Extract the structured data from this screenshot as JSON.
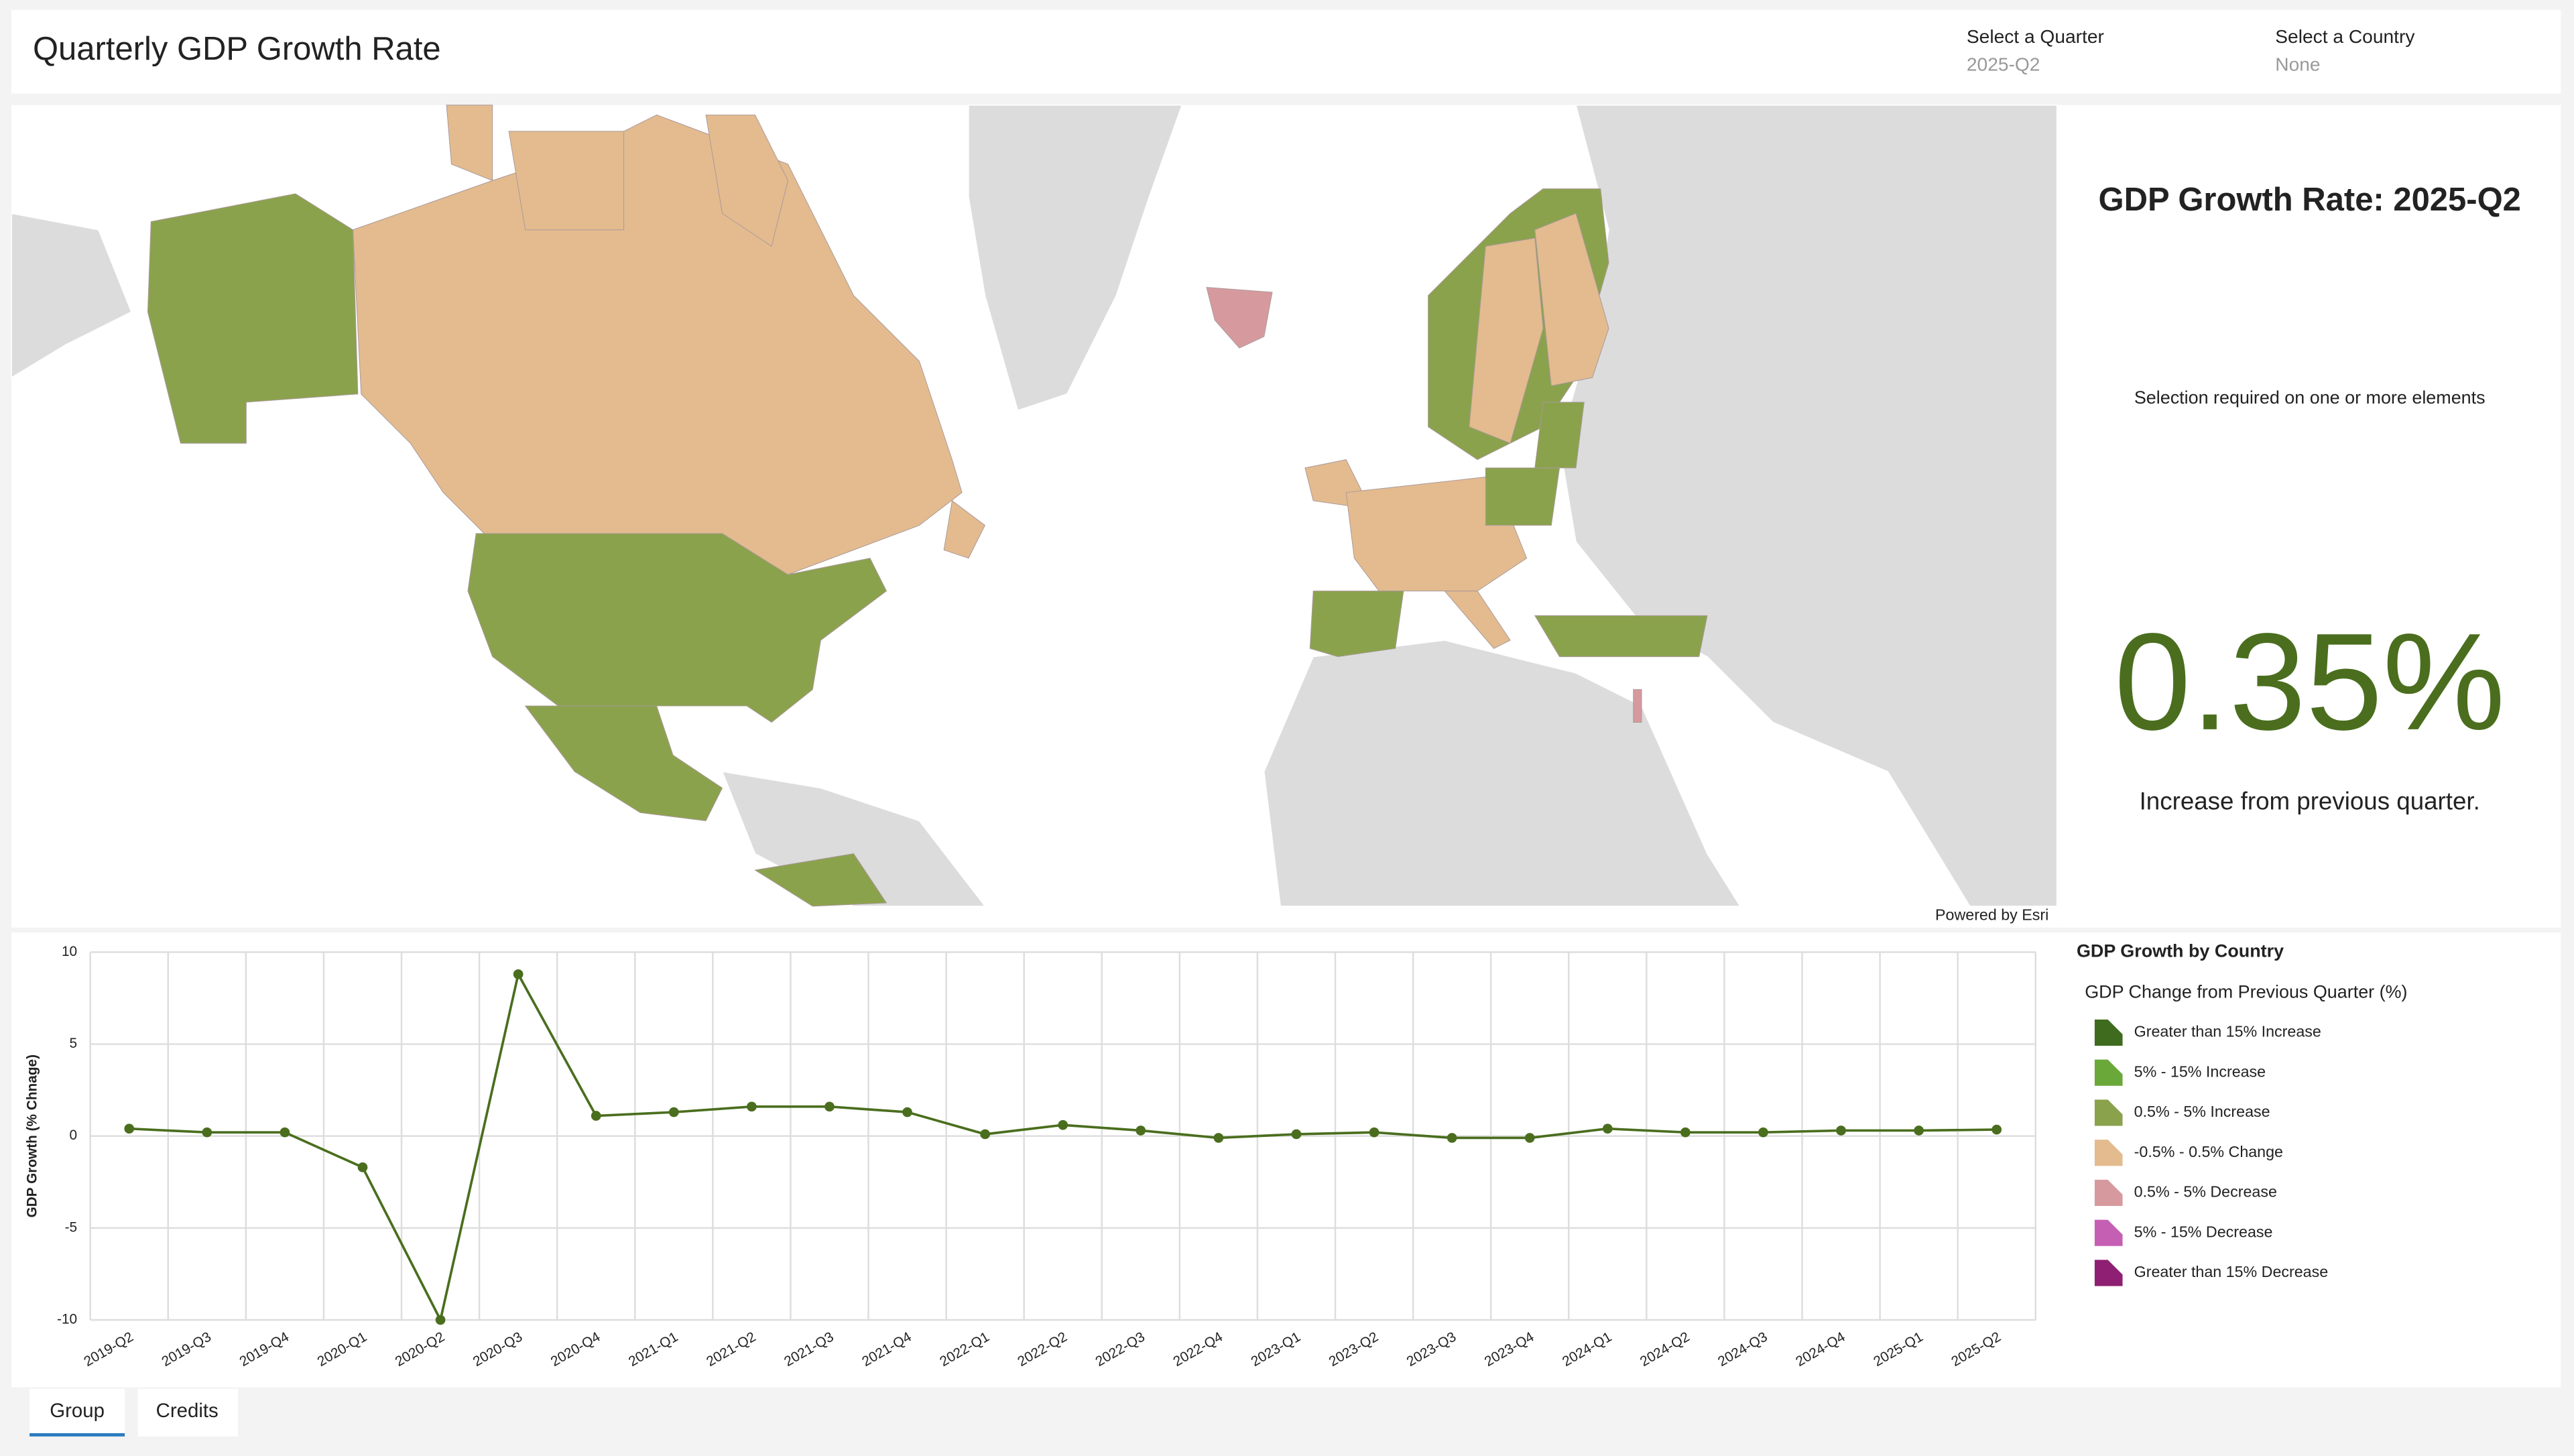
{
  "header": {
    "title": "Quarterly GDP Growth Rate",
    "filters": [
      {
        "label": "Select a Quarter",
        "value": "2025-Q2"
      },
      {
        "label": "Select a Country",
        "value": "None"
      }
    ]
  },
  "map": {
    "attribution": "Powered by Esri"
  },
  "summary": {
    "title": "GDP Growth Rate: 2025-Q2",
    "notice": "Selection required on one or more elements",
    "value": "0.35%",
    "caption": "Increase from previous quarter."
  },
  "chart_data": {
    "type": "line",
    "y_label": "GDP Growth (% Chnage)",
    "categories": [
      "2019-Q2",
      "2019-Q3",
      "2019-Q4",
      "2020-Q1",
      "2020-Q2",
      "2020-Q3",
      "2020-Q4",
      "2021-Q1",
      "2021-Q2",
      "2021-Q3",
      "2021-Q4",
      "2022-Q1",
      "2022-Q2",
      "2022-Q3",
      "2022-Q4",
      "2023-Q1",
      "2023-Q2",
      "2023-Q3",
      "2023-Q4",
      "2024-Q1",
      "2024-Q2",
      "2024-Q3",
      "2024-Q4",
      "2025-Q1",
      "2025-Q2"
    ],
    "values": [
      0.4,
      0.2,
      0.2,
      -1.7,
      -10,
      8.8,
      1.1,
      1.3,
      1.6,
      1.6,
      1.3,
      0.1,
      0.6,
      0.3,
      -0.1,
      0.1,
      0.2,
      -0.1,
      -0.1,
      0.4,
      0.2,
      0.2,
      0.3,
      0.3,
      0.35
    ],
    "color": "#4a6e1e",
    "ylim": [
      -10,
      10
    ],
    "yticks": [
      -10,
      -5,
      0,
      5,
      10
    ],
    "grid": true
  },
  "legend": {
    "title": "GDP Growth by Country",
    "subtitle": "GDP Change from Previous Quarter (%)",
    "items": [
      {
        "label": "Greater than 15% Increase",
        "color": "#3f6b1f"
      },
      {
        "label": "5% - 15% Increase",
        "color": "#6aa83a"
      },
      {
        "label": "0.5% - 5% Increase",
        "color": "#8ba24d"
      },
      {
        "label": "-0.5% - 0.5% Change",
        "color": "#e3bb8f"
      },
      {
        "label": "0.5% - 5% Decrease",
        "color": "#d69a9e"
      },
      {
        "label": "5% - 15% Decrease",
        "color": "#c55fb4"
      },
      {
        "label": "Greater than 15% Decrease",
        "color": "#8e1f73"
      }
    ]
  },
  "tabs": [
    "Group",
    "Credits"
  ]
}
